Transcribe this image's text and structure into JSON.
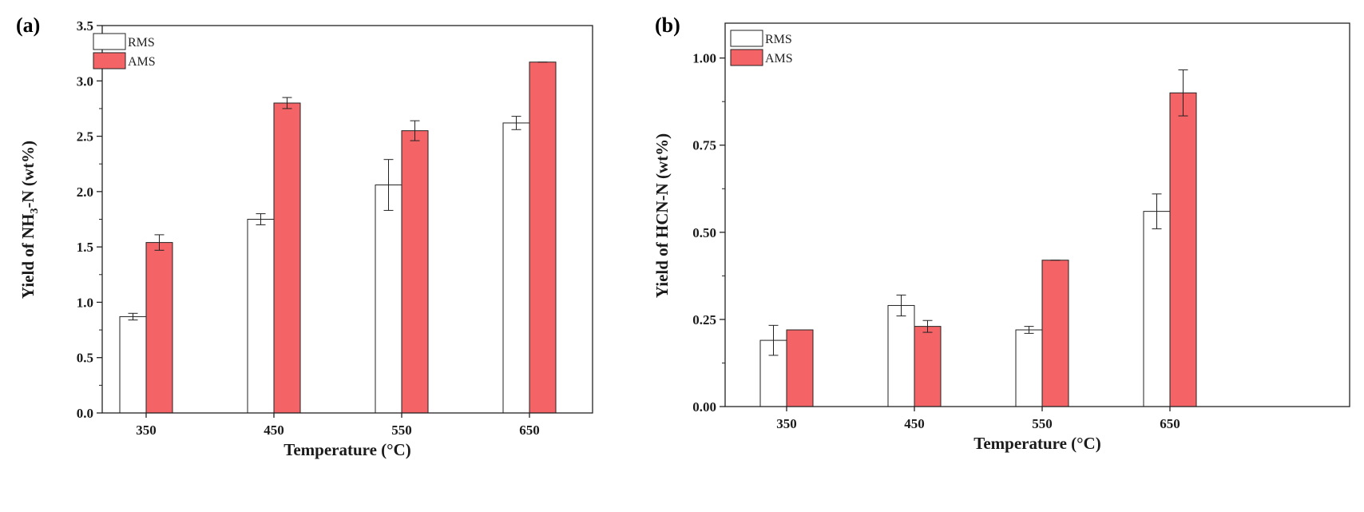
{
  "colors": {
    "rms_fill": "#ffffff",
    "ams_fill": "#f46466",
    "edge": "#222222"
  },
  "chart_data": [
    {
      "type": "bar",
      "panel_label": "(a)",
      "categories": [
        "350",
        "450",
        "550",
        "650"
      ],
      "series": [
        {
          "name": "RMS",
          "values": [
            0.87,
            1.75,
            2.06,
            2.62
          ],
          "errors": [
            0.03,
            0.05,
            0.23,
            0.06
          ]
        },
        {
          "name": "AMS",
          "values": [
            1.54,
            2.8,
            2.55,
            3.17
          ],
          "errors": [
            0.07,
            0.05,
            0.09,
            0.0
          ]
        }
      ],
      "xlabel": "Temperature (°C)",
      "ylabel_main": "Yield of NH",
      "ylabel_sub": "3",
      "ylabel_tail": "-N (wt%)",
      "ylim": [
        0,
        3.5
      ],
      "yticks": [
        "0.0",
        "0.5",
        "1.0",
        "1.5",
        "2.0",
        "2.5",
        "3.0",
        "3.5"
      ],
      "legend_position": "top-left"
    },
    {
      "type": "bar",
      "panel_label": "(b)",
      "categories": [
        "350",
        "450",
        "550",
        "650"
      ],
      "series": [
        {
          "name": "RMS",
          "values": [
            0.19,
            0.29,
            0.22,
            0.56
          ],
          "errors": [
            0.043,
            0.03,
            0.01,
            0.05
          ]
        },
        {
          "name": "AMS",
          "values": [
            0.22,
            0.23,
            0.42,
            0.9
          ],
          "errors": [
            0.0,
            0.017,
            0.0,
            0.066
          ]
        }
      ],
      "xlabel": "Temperature (°C)",
      "ylabel": "Yield of HCN-N (wt%)",
      "ylim": [
        0,
        1.1
      ],
      "yticks": [
        "0.00",
        "0.25",
        "0.50",
        "0.75",
        "1.00"
      ],
      "legend_position": "top-left"
    }
  ]
}
